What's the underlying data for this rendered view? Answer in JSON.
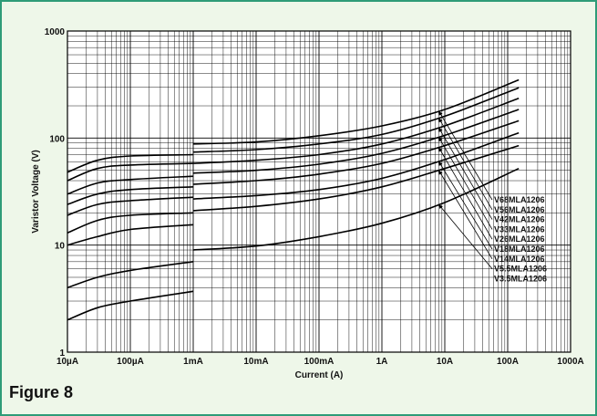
{
  "figure_label": "Figure 8",
  "chart_data": {
    "type": "line",
    "title": "",
    "xlabel": "Current (A)",
    "ylabel": "Varistor Voltage (V)",
    "x_scale": "log",
    "y_scale": "log",
    "xlim": [
      1e-05,
      1000
    ],
    "ylim": [
      1,
      1000
    ],
    "grid": true,
    "legend_position": "right",
    "x_ticks": [
      {
        "value": 1e-05,
        "label": "10µA"
      },
      {
        "value": 0.0001,
        "label": "100µA"
      },
      {
        "value": 0.001,
        "label": "1mA"
      },
      {
        "value": 0.01,
        "label": "10mA"
      },
      {
        "value": 0.1,
        "label": "100mA"
      },
      {
        "value": 1,
        "label": "1A"
      },
      {
        "value": 10,
        "label": "10A"
      },
      {
        "value": 100,
        "label": "100A"
      },
      {
        "value": 1000,
        "label": "1000A"
      }
    ],
    "y_ticks": [
      {
        "value": 1,
        "label": "1"
      },
      {
        "value": 10,
        "label": "10"
      },
      {
        "value": 100,
        "label": "100"
      },
      {
        "value": 1000,
        "label": "1000"
      }
    ],
    "series": [
      {
        "name": "V68MLA1206",
        "low": [
          [
            1e-05,
            48
          ],
          [
            3e-05,
            62
          ],
          [
            0.0001,
            68
          ],
          [
            0.001,
            70
          ]
        ],
        "high": [
          [
            0.001,
            88
          ],
          [
            0.01,
            92
          ],
          [
            0.1,
            105
          ],
          [
            1,
            130
          ],
          [
            10,
            185
          ],
          [
            150,
            350
          ]
        ]
      },
      {
        "name": "V56MLA1206",
        "low": [
          [
            1e-05,
            40
          ],
          [
            3e-05,
            52
          ],
          [
            0.0001,
            56
          ],
          [
            0.001,
            58
          ]
        ],
        "high": [
          [
            0.001,
            74
          ],
          [
            0.01,
            78
          ],
          [
            0.1,
            88
          ],
          [
            1,
            108
          ],
          [
            10,
            160
          ],
          [
            150,
            295
          ]
        ]
      },
      {
        "name": "V42MLA1206",
        "low": [
          [
            1e-05,
            30
          ],
          [
            3e-05,
            38
          ],
          [
            0.0001,
            41
          ],
          [
            0.001,
            44
          ]
        ],
        "high": [
          [
            0.001,
            58
          ],
          [
            0.01,
            62
          ],
          [
            0.1,
            70
          ],
          [
            1,
            88
          ],
          [
            10,
            130
          ],
          [
            150,
            235
          ]
        ]
      },
      {
        "name": "V33MLA1206",
        "low": [
          [
            1e-05,
            24
          ],
          [
            3e-05,
            30
          ],
          [
            0.0001,
            33
          ],
          [
            0.001,
            35
          ]
        ],
        "high": [
          [
            0.001,
            47
          ],
          [
            0.01,
            50
          ],
          [
            0.1,
            57
          ],
          [
            1,
            72
          ],
          [
            10,
            106
          ],
          [
            150,
            185
          ]
        ]
      },
      {
        "name": "V26MLA1206",
        "low": [
          [
            1e-05,
            19
          ],
          [
            3e-05,
            24
          ],
          [
            0.0001,
            26
          ],
          [
            0.001,
            28
          ]
        ],
        "high": [
          [
            0.001,
            37
          ],
          [
            0.01,
            40
          ],
          [
            0.1,
            46
          ],
          [
            1,
            58
          ],
          [
            10,
            85
          ],
          [
            150,
            145
          ]
        ]
      },
      {
        "name": "V18MLA1206",
        "low": [
          [
            1e-05,
            13
          ],
          [
            3e-05,
            17
          ],
          [
            0.0001,
            19
          ],
          [
            0.001,
            20
          ]
        ],
        "high": [
          [
            0.001,
            27
          ],
          [
            0.01,
            29
          ],
          [
            0.1,
            33
          ],
          [
            1,
            42
          ],
          [
            10,
            63
          ],
          [
            150,
            112
          ]
        ]
      },
      {
        "name": "V14MLA1206",
        "low": [
          [
            1e-05,
            10
          ],
          [
            3e-05,
            12
          ],
          [
            0.0001,
            14
          ],
          [
            0.001,
            15.5
          ]
        ],
        "high": [
          [
            0.001,
            21
          ],
          [
            0.01,
            23
          ],
          [
            0.1,
            27
          ],
          [
            1,
            35
          ],
          [
            10,
            52
          ],
          [
            150,
            85
          ]
        ]
      },
      {
        "name": "V5.5MLA1206",
        "low": [
          [
            1e-05,
            4
          ],
          [
            3e-05,
            5
          ],
          [
            0.0001,
            5.8
          ],
          [
            0.001,
            7
          ]
        ],
        "high": [
          [
            0.001,
            9
          ],
          [
            0.01,
            9.8
          ],
          [
            0.1,
            12
          ],
          [
            1,
            16
          ],
          [
            10,
            25
          ],
          [
            150,
            52
          ]
        ]
      },
      {
        "name": "V3.5MLA1206",
        "low": [
          [
            1e-05,
            2
          ],
          [
            3e-05,
            2.6
          ],
          [
            0.0001,
            3
          ],
          [
            0.001,
            3.7
          ]
        ],
        "high": []
      }
    ]
  }
}
